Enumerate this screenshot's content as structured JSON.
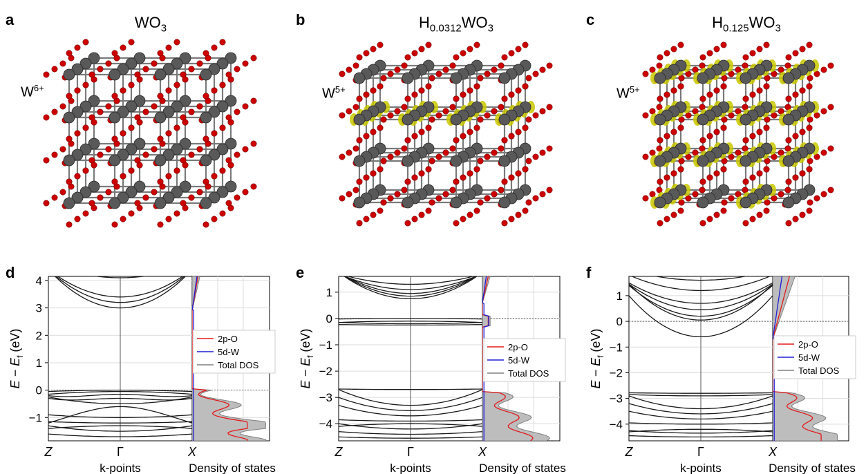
{
  "panels_top": [
    {
      "letter": "a",
      "title": "WO",
      "title_sub": "3",
      "title_pre": "",
      "ion": "W",
      "ion_sup": "6+"
    },
    {
      "letter": "b",
      "title": "WO",
      "title_sub": "3",
      "title_pre": "H",
      "title_pre_sub": "0.0312",
      "ion": "W",
      "ion_sup": "5+"
    },
    {
      "letter": "c",
      "title": "WO",
      "title_sub": "3",
      "title_pre": "H",
      "title_pre_sub": "0.125",
      "ion": "W",
      "ion_sup": "5+"
    }
  ],
  "colors": {
    "o_atom": "#cc0000",
    "w_atom": "#595959",
    "bond": "#7a7a7a",
    "charge": "#c8c800",
    "pdos_o": "#e31a1c",
    "pdos_w": "#1f1fd6",
    "total_dos": "#808080",
    "total_fill": "#bdbdbd"
  },
  "axis_text": {
    "ylabel": "E − E",
    "ylabel_sub": "f",
    "ylabel_unit": " (eV)",
    "kpoints": "k-points",
    "dos": "Density of states",
    "k_z": "Z",
    "k_gamma": "Γ",
    "k_x": "X"
  },
  "legend": [
    "2p-O",
    "5d-W",
    "Total DOS"
  ],
  "chart_data": [
    {
      "panel": "d",
      "type": "line",
      "ylim": [
        -1.85,
        4.15
      ],
      "yticks": [
        -1,
        0,
        1,
        2,
        3,
        4
      ],
      "fermi_level": 0,
      "grid": true,
      "conduction_band_min": 3.0,
      "valence_band_max": 0.0,
      "xticks": [
        "Z",
        "Γ",
        "X"
      ],
      "legend": [
        "2p-O",
        "5d-W",
        "Total DOS"
      ]
    },
    {
      "panel": "e",
      "type": "line",
      "ylim": [
        -4.65,
        1.6
      ],
      "yticks": [
        -4,
        -3,
        -2,
        -1,
        0,
        1
      ],
      "fermi_level": 0,
      "grid": true,
      "gap_states": [
        0.0,
        -0.1,
        -0.2,
        -0.25
      ],
      "conduction_band_min": 0.75,
      "valence_band_max": -2.7,
      "xticks": [
        "Z",
        "Γ",
        "X"
      ],
      "legend": [
        "2p-O",
        "5d-W",
        "Total DOS"
      ]
    },
    {
      "panel": "f",
      "type": "line",
      "ylim": [
        -4.65,
        1.75
      ],
      "yticks": [
        -4,
        -3,
        -2,
        -1,
        0,
        1
      ],
      "fermi_level": 0,
      "grid": true,
      "conduction_band_min": -0.6,
      "valence_band_max": -2.8,
      "xticks": [
        "Z",
        "Γ",
        "X"
      ],
      "legend": [
        "2p-O",
        "5d-W",
        "Total DOS"
      ]
    }
  ]
}
